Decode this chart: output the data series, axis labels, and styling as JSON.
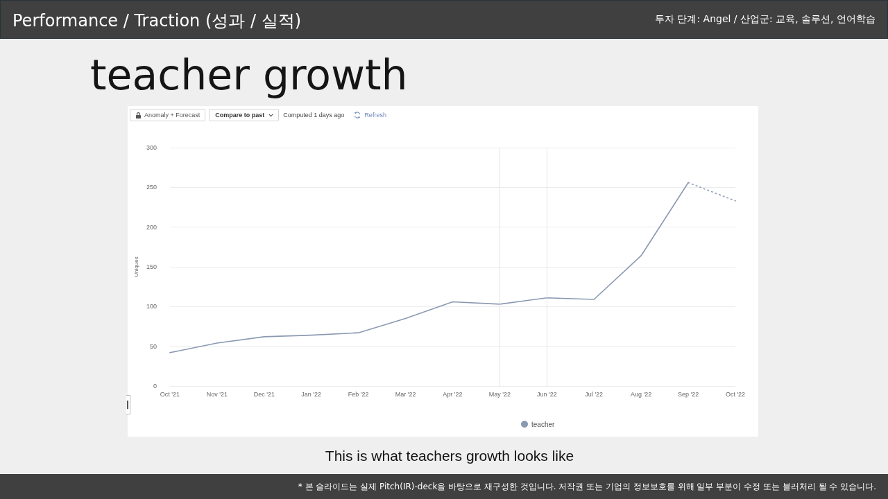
{
  "chart_data": {
    "type": "line",
    "title": "teacher growth",
    "ylabel": "Uniques",
    "categories": [
      "Oct '21",
      "Nov '21",
      "Dec '21",
      "Jan '22",
      "Feb '22",
      "Mar '22",
      "Apr '22",
      "May '22",
      "Jun '22",
      "Jul '22",
      "Aug '22",
      "Sep '22",
      "Oct '22"
    ],
    "series": [
      {
        "name": "teacher",
        "color": "#8a99b2",
        "values": [
          42,
          54,
          62,
          64,
          67,
          85,
          106,
          103,
          111,
          109,
          164,
          256,
          null
        ]
      },
      {
        "color": "#8a99b2",
        "line_style": "dotted",
        "values": [
          null,
          null,
          null,
          null,
          null,
          null,
          null,
          null,
          null,
          null,
          null,
          256,
          233
        ]
      }
    ],
    "ylim": [
      0,
      300
    ],
    "yticks": [
      0,
      50,
      100,
      150,
      200,
      250,
      300
    ],
    "grid": "y",
    "legend": "bottom",
    "marker": "none",
    "line_style": "solid",
    "ref_lines": [
      {
        "axis": "x",
        "value": "May '22",
        "color": "#e2e4e8"
      },
      {
        "axis": "x",
        "value": "Jun '22",
        "color": "#e2e4e8"
      }
    ],
    "annotations": [
      "Performance / Traction (성과 / 실적)",
      "투자 단계: Angel / 산업군: 교육, 솔루션, 언어학습",
      "Anomaly + Forecast",
      "Compare to past",
      "Computed 1 days ago",
      "Refresh",
      "This is what teachers growth looks like",
      "* 본 슬라이드는 실제 Pitch(IR)-deck을 바탕으로 재구성한 것입니다. 저작권 또는 기업의 정보보호를 위해 일부 부분이 수정 또는 블러처리 될 수 있습니다."
    ]
  }
}
